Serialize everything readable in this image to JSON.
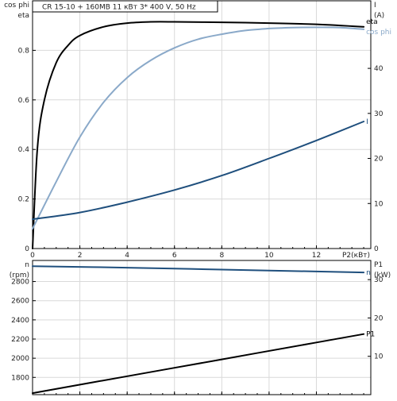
{
  "title": "CR 15-10 + 160MB     11 кВт   3* 400 V, 50 Hz",
  "chart_data": [
    {
      "type": "line",
      "title": "CR 15-10 + 160MB     11 кВт   3* 400 V, 50 Hz",
      "xlabel": "P2(кВт)",
      "ylabel_left_top": "cos phi",
      "ylabel_left_bottom": "eta",
      "ylabel_right_top": "I",
      "ylabel_right_bottom": "(A)",
      "xlim": [
        0,
        14.3
      ],
      "ylim_left": [
        0,
        1.0
      ],
      "ylim_right": [
        0,
        55
      ],
      "x_ticks": [
        "0",
        "2",
        "4",
        "6",
        "8",
        "10",
        "12"
      ],
      "y_ticks_left": [
        "0",
        "0.2",
        "0.4",
        "0.6",
        "0.8"
      ],
      "y_ticks_right": [
        "0",
        "10",
        "20",
        "30",
        "40"
      ],
      "grid": true,
      "series": [
        {
          "name": "eta",
          "axis": "left",
          "color": "#000000",
          "x": [
            0,
            0.2,
            0.5,
            1,
            1.5,
            2,
            3,
            4,
            5,
            6,
            8,
            10,
            12,
            14
          ],
          "y": [
            0,
            0.4,
            0.6,
            0.75,
            0.82,
            0.86,
            0.895,
            0.91,
            0.915,
            0.915,
            0.913,
            0.91,
            0.905,
            0.895
          ]
        },
        {
          "name": "cos phi",
          "axis": "left",
          "color": "#8aa9c9",
          "x": [
            0,
            1,
            2,
            3,
            4,
            5,
            6,
            7,
            8,
            9,
            10,
            11,
            12,
            13,
            14
          ],
          "y": [
            0.08,
            0.27,
            0.45,
            0.59,
            0.69,
            0.76,
            0.81,
            0.845,
            0.865,
            0.88,
            0.888,
            0.892,
            0.893,
            0.892,
            0.885
          ]
        },
        {
          "name": "I",
          "axis": "right",
          "color": "#1f4f7d",
          "x": [
            0,
            2,
            4,
            6,
            8,
            10,
            12,
            14
          ],
          "y": [
            6.5,
            8,
            10.3,
            13,
            16.2,
            20,
            24,
            28.2
          ]
        }
      ]
    },
    {
      "type": "line",
      "xlabel": "",
      "ylabel_left_top": "n",
      "ylabel_left_bottom": "(rpm)",
      "ylabel_right_top": "P1",
      "ylabel_right_bottom": "(kW)",
      "xlim": [
        0,
        14.3
      ],
      "ylim_left": [
        1620,
        3020
      ],
      "ylim_right": [
        0,
        35
      ],
      "y_ticks_left": [
        "1800",
        "2000",
        "2200",
        "2400",
        "2600",
        "2800"
      ],
      "y_ticks_right": [
        "10",
        "20",
        "30"
      ],
      "grid": true,
      "series": [
        {
          "name": "n",
          "axis": "left",
          "color": "#1f4f7d",
          "x": [
            0,
            4,
            8,
            12,
            14
          ],
          "y": [
            2960,
            2945,
            2925,
            2905,
            2895
          ]
        },
        {
          "name": "P1",
          "axis": "right",
          "color": "#000000",
          "x": [
            0,
            4,
            8,
            12,
            14
          ],
          "y": [
            0.4,
            4.8,
            9.2,
            13.6,
            15.8
          ]
        }
      ]
    }
  ]
}
